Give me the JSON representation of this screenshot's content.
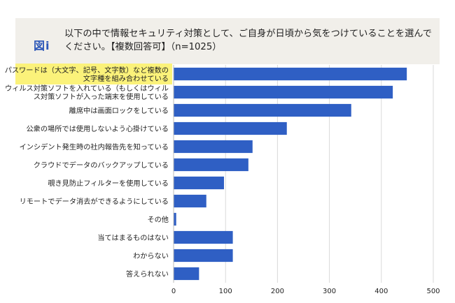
{
  "header": {
    "figure_label": "図i",
    "question": "以下の中で情報セキュリティ対策として、ご自身が日頃から気をつけていることを選んでください。【複数回答可】（n=1025）"
  },
  "colors": {
    "bar": "#2f5fc4",
    "highlight": "#fbf27a",
    "header_bg": "#f1efea",
    "grid": "#d9d9d9"
  },
  "chart_data": {
    "type": "bar",
    "orientation": "horizontal",
    "categories": [
      [
        "パスワードは（大文字、記号、文字数）など複数の",
        "文字種を組み合わせている"
      ],
      [
        "ウィルス対策ソフトを入れている（もしくはウィル",
        "ス対策ソフトが入った端末を使用している"
      ],
      [
        "離席中は画面ロックをしている"
      ],
      [
        "公衆の場所では使用しないよう心掛けている"
      ],
      [
        "インシデント発生時の社内報告先を知っている"
      ],
      [
        "クラウドでデータのバックアップしている"
      ],
      [
        "覗き見防止フィルターを使用している"
      ],
      [
        "リモートでデータ消去ができるようにしている"
      ],
      [
        "その他"
      ],
      [
        "当てはまるものはない"
      ],
      [
        "わからない"
      ],
      [
        "答えられない"
      ]
    ],
    "values": [
      449,
      422,
      342,
      218,
      152,
      144,
      97,
      63,
      5,
      114,
      114,
      49
    ],
    "highlighted_index": 0,
    "xlim": [
      0,
      500
    ],
    "xticks": [
      0,
      100,
      200,
      300,
      400,
      500
    ],
    "grid": true
  }
}
